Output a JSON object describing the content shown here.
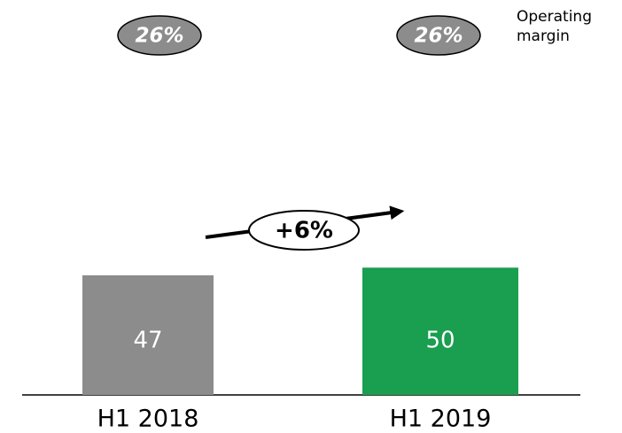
{
  "chart_data": {
    "type": "bar",
    "categories": [
      "H1 2018",
      "H1 2019"
    ],
    "values": [
      47,
      50
    ],
    "colors": [
      "#8c8c8c",
      "#1a9e50"
    ],
    "operating_margin": {
      "name": "Operating margin",
      "values": [
        26,
        26
      ],
      "value_labels": [
        "26%",
        "26%"
      ],
      "color": "#8c8c8c"
    },
    "growth_label": "+6%"
  }
}
